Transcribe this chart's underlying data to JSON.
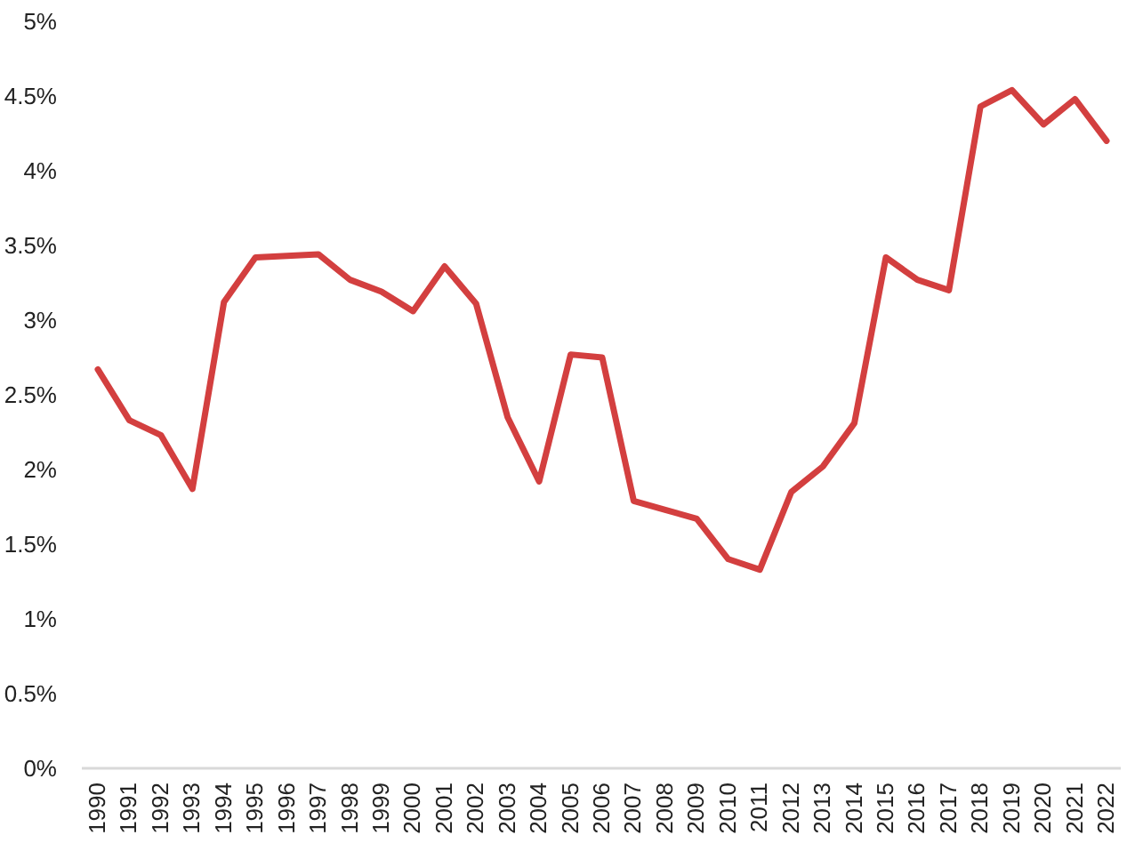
{
  "chart_data": {
    "type": "line",
    "categories": [
      "1990",
      "1991",
      "1992",
      "1993",
      "1994",
      "1995",
      "1996",
      "1997",
      "1998",
      "1999",
      "2000",
      "2001",
      "2002",
      "2003",
      "2004",
      "2005",
      "2006",
      "2007",
      "2008",
      "2009",
      "2010",
      "2011",
      "2012",
      "2013",
      "2014",
      "2015",
      "2016",
      "2017",
      "2018",
      "2019",
      "2020",
      "2021",
      "2022"
    ],
    "series": [
      {
        "color": "#d33f3f",
        "values": [
          2.67,
          2.33,
          2.23,
          1.87,
          3.12,
          3.42,
          3.43,
          3.44,
          3.27,
          3.19,
          3.06,
          3.36,
          3.11,
          2.35,
          1.92,
          2.77,
          2.75,
          1.79,
          1.73,
          1.67,
          1.4,
          1.33,
          1.85,
          2.02,
          2.31,
          3.42,
          3.27,
          3.2,
          4.43,
          4.54,
          4.31,
          4.48,
          4.2
        ]
      }
    ],
    "ylim": [
      0,
      5
    ],
    "yticks": [
      {
        "value": 0,
        "label": "0%"
      },
      {
        "value": 0.5,
        "label": "0.5%"
      },
      {
        "value": 1,
        "label": "1%"
      },
      {
        "value": 1.5,
        "label": "1.5%"
      },
      {
        "value": 2,
        "label": "2%"
      },
      {
        "value": 2.5,
        "label": "2.5%"
      },
      {
        "value": 3,
        "label": "3%"
      },
      {
        "value": 3.5,
        "label": "3.5%"
      },
      {
        "value": 4,
        "label": "4%"
      },
      {
        "value": 4.5,
        "label": "4.5%"
      },
      {
        "value": 5,
        "label": "5%"
      }
    ],
    "grid": false,
    "marker": "none",
    "line_style": "solid"
  }
}
